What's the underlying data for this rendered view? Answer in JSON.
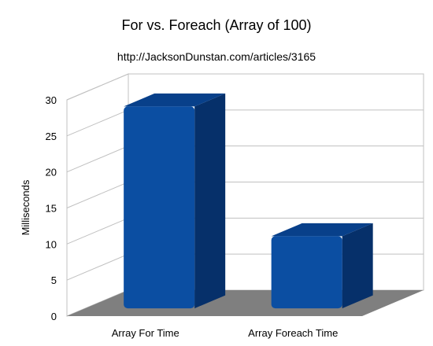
{
  "chart_data": {
    "type": "bar",
    "three_d": true,
    "title": "For vs. Foreach (Array of 100)",
    "subtitle": "http://JacksonDunstan.com/articles/3165",
    "xlabel": "",
    "ylabel": "Milliseconds",
    "categories": [
      "Array For Time",
      "Array Foreach Time"
    ],
    "series": [
      {
        "values": [
          28,
          10
        ]
      }
    ],
    "ylim": [
      0,
      30
    ],
    "yticks": [
      0,
      5,
      10,
      15,
      20,
      25,
      30
    ],
    "grid": true,
    "legend": "none",
    "colors": {
      "bar_front": "#0b4ea2",
      "bar_side": "#06306a",
      "bar_top": "#08408a",
      "floor": "#7f7f7f",
      "gridline": "#c0c0c0",
      "wall": "#ffffff"
    }
  }
}
